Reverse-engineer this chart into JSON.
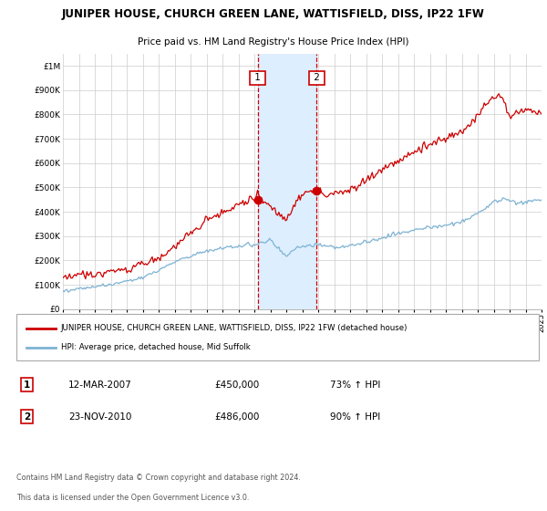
{
  "title": "JUNIPER HOUSE, CHURCH GREEN LANE, WATTISFIELD, DISS, IP22 1FW",
  "subtitle": "Price paid vs. HM Land Registry's House Price Index (HPI)",
  "ylim": [
    0,
    1050000
  ],
  "yticks": [
    0,
    100000,
    200000,
    300000,
    400000,
    500000,
    600000,
    700000,
    800000,
    900000,
    1000000
  ],
  "ytick_labels": [
    "£0",
    "£100K",
    "£200K",
    "£300K",
    "£400K",
    "£500K",
    "£600K",
    "£700K",
    "£800K",
    "£900K",
    "£1M"
  ],
  "year_start": 1995,
  "year_end": 2025,
  "purchase1_year": 2007.2,
  "purchase1_price": 450000,
  "purchase1_label": "1",
  "purchase1_date": "12-MAR-2007",
  "purchase1_pct": "73%",
  "purchase2_year": 2010.9,
  "purchase2_price": 486000,
  "purchase2_label": "2",
  "purchase2_date": "23-NOV-2010",
  "purchase2_pct": "90%",
  "line_color_house": "#cc0000",
  "line_color_hpi": "#7fb3d3",
  "highlight_color": "#ddeeff",
  "highlight_border": "#cc0000",
  "legend_house": "JUNIPER HOUSE, CHURCH GREEN LANE, WATTISFIELD, DISS, IP22 1FW (detached house)",
  "legend_hpi": "HPI: Average price, detached house, Mid Suffolk",
  "footer1": "Contains HM Land Registry data © Crown copyright and database right 2024.",
  "footer2": "This data is licensed under the Open Government Licence v3.0."
}
